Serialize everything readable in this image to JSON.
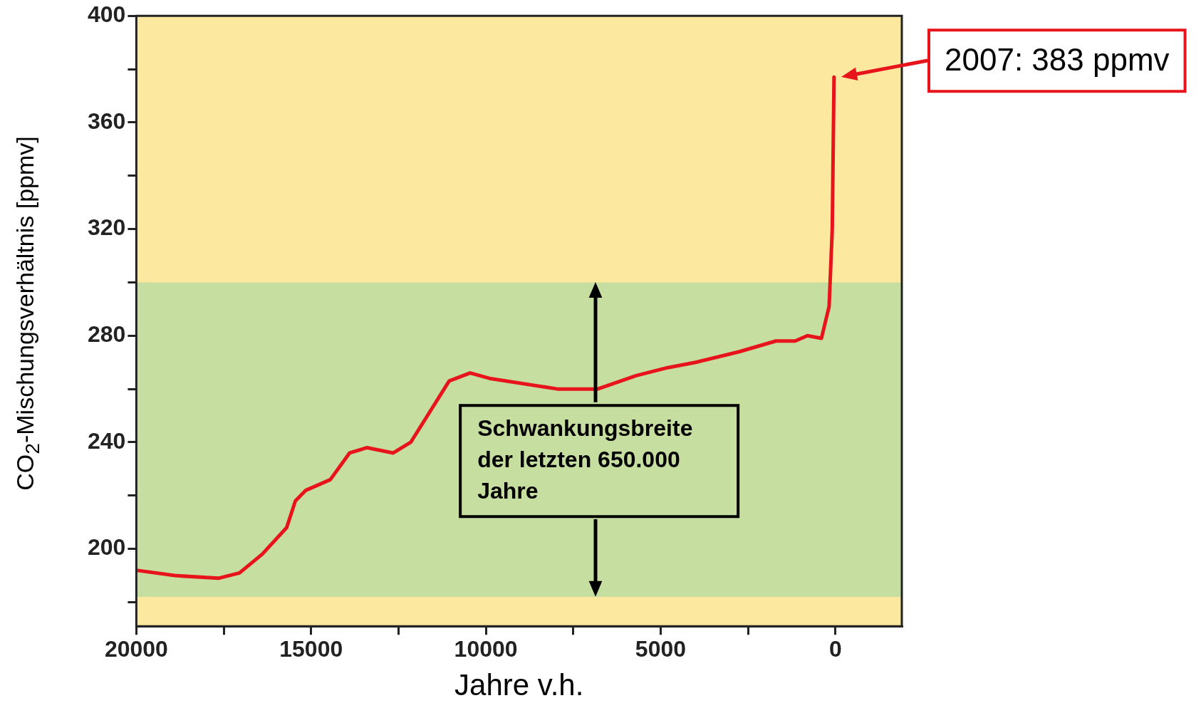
{
  "chart_data": {
    "type": "line",
    "xlabel": "Jahre v.h.",
    "ylabel": "CO$_{2}$-Mischungsverhältnis [ppmv]",
    "x": [
      20000,
      18900,
      17650,
      17050,
      16400,
      15700,
      15450,
      15150,
      14450,
      13900,
      13400,
      12650,
      12150,
      11050,
      10450,
      9900,
      7950,
      6800,
      5700,
      4800,
      4000,
      2750,
      1700,
      1150,
      800,
      400,
      180,
      90,
      40
    ],
    "values": [
      192,
      190,
      189,
      191,
      198,
      208,
      218,
      222,
      226,
      236,
      238,
      236,
      240,
      263,
      266,
      264,
      260,
      260,
      265,
      268,
      270,
      274,
      278,
      278,
      280,
      279,
      291,
      320,
      377
    ],
    "color": "#e8141c",
    "xlim": [
      20000,
      -1900
    ],
    "xticks": [
      20000,
      {
        "value": 17500,
        "label": null
      },
      15000,
      {
        "value": 12500,
        "label": null
      },
      10000,
      {
        "value": 7500,
        "label": null
      },
      5000,
      {
        "value": 2500,
        "label": null
      },
      0
    ],
    "ylim": [
      171,
      400
    ],
    "yticks": [
      {
        "value": 180,
        "label": null
      },
      200,
      {
        "value": 220,
        "label": null
      },
      240,
      {
        "value": 260,
        "label": null
      },
      280,
      {
        "value": 300,
        "label": null
      },
      320,
      {
        "value": 340,
        "label": null
      },
      360,
      {
        "value": 380,
        "label": null
      },
      400
    ],
    "bands": [
      {
        "axis": "y",
        "from": 171,
        "to": 400,
        "color": "#fde8a0"
      },
      {
        "axis": "y",
        "from": 182,
        "to": 300,
        "color": "#c6dea0",
        "label": "Schwankungsbreite der letzten 650.000 Jahre"
      }
    ],
    "annotations": [
      "2007: 383 ppmv"
    ]
  }
}
